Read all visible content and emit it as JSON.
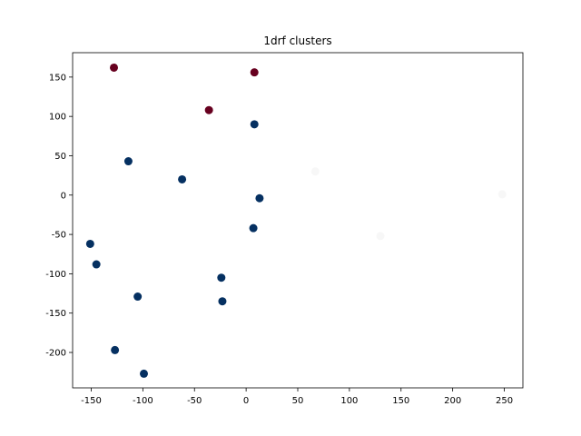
{
  "chart_data": {
    "type": "scatter",
    "title": "1drf clusters",
    "xlabel": "",
    "ylabel": "",
    "xlim": [
      -168,
      268
    ],
    "ylim": [
      -245,
      181
    ],
    "xticks": [
      -150,
      -100,
      -50,
      0,
      50,
      100,
      150,
      200,
      250
    ],
    "yticks": [
      -200,
      -150,
      -100,
      -50,
      0,
      50,
      100,
      150
    ],
    "grid": false,
    "legend": "none",
    "colors": {
      "cluster_red": "#67001f",
      "cluster_blue": "#053061",
      "cluster_white": "#f7f7f7"
    },
    "points": [
      {
        "x": -128,
        "y": 162,
        "color": "cluster_red"
      },
      {
        "x": 8,
        "y": 156,
        "color": "cluster_red"
      },
      {
        "x": -36,
        "y": 108,
        "color": "cluster_red"
      },
      {
        "x": 8,
        "y": 90,
        "color": "cluster_blue"
      },
      {
        "x": -114,
        "y": 43,
        "color": "cluster_blue"
      },
      {
        "x": -62,
        "y": 20,
        "color": "cluster_blue"
      },
      {
        "x": 13,
        "y": -4,
        "color": "cluster_blue"
      },
      {
        "x": 7,
        "y": -42,
        "color": "cluster_blue"
      },
      {
        "x": -151,
        "y": -62,
        "color": "cluster_blue"
      },
      {
        "x": -145,
        "y": -88,
        "color": "cluster_blue"
      },
      {
        "x": -24,
        "y": -105,
        "color": "cluster_blue"
      },
      {
        "x": -105,
        "y": -129,
        "color": "cluster_blue"
      },
      {
        "x": -23,
        "y": -135,
        "color": "cluster_blue"
      },
      {
        "x": -127,
        "y": -197,
        "color": "cluster_blue"
      },
      {
        "x": -99,
        "y": -227,
        "color": "cluster_blue"
      },
      {
        "x": 67,
        "y": 30,
        "color": "cluster_white"
      },
      {
        "x": 130,
        "y": -52,
        "color": "cluster_white"
      },
      {
        "x": 248,
        "y": 1,
        "color": "cluster_white"
      }
    ]
  }
}
